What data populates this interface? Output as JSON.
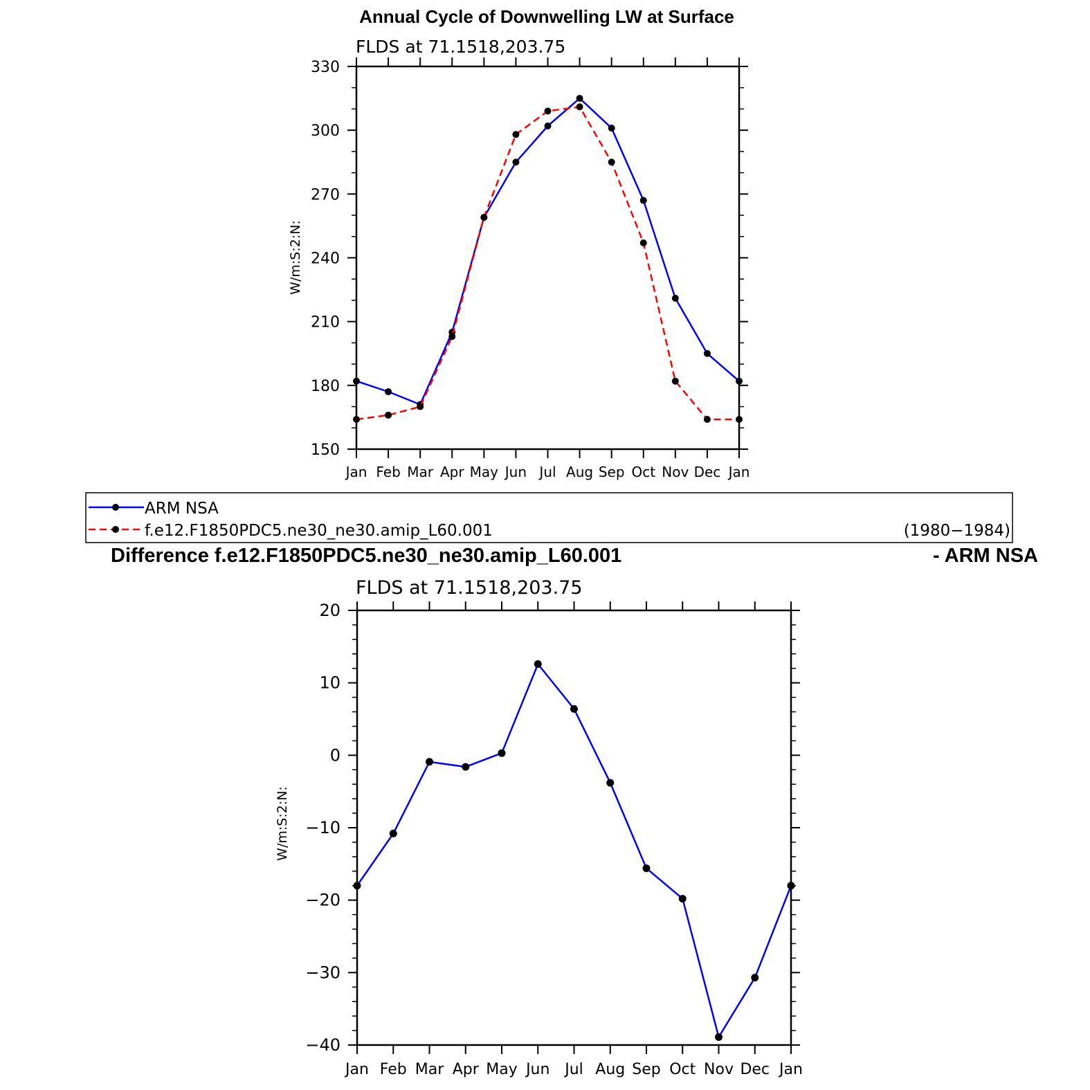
{
  "chart_data": [
    {
      "type": "line",
      "title": "Annual Cycle of Downwelling LW at Surface",
      "subtitle": "FLDS at 71.1518,203.75",
      "xlabel": "",
      "ylabel": "W/m:S:2:N:",
      "categories": [
        "Jan",
        "Feb",
        "Mar",
        "Apr",
        "May",
        "Jun",
        "Jul",
        "Aug",
        "Sep",
        "Oct",
        "Nov",
        "Dec",
        "Jan"
      ],
      "ylim": [
        150,
        330
      ],
      "yticks": [
        "150",
        "180",
        "210",
        "240",
        "270",
        "300",
        "330"
      ],
      "series": [
        {
          "name": "ARM NSA",
          "color": "#0000ff",
          "dash": "solid",
          "values": [
            182,
            177,
            171,
            205,
            259,
            285,
            302,
            315,
            301,
            267,
            221,
            195,
            182
          ]
        },
        {
          "name": "f.e12.F1850PDC5.ne30_ne30.amip_L60.001",
          "color": "#ff0000",
          "dash": "dashed",
          "values": [
            164,
            166,
            170,
            203,
            259,
            298,
            309,
            311,
            285,
            247,
            182,
            164,
            164
          ]
        }
      ],
      "legend": {
        "placement": "bottom",
        "period": "(1980−1984)"
      }
    },
    {
      "type": "line",
      "title_left": "Difference f.e12.F1850PDC5.ne30_ne30.amip_L60.001",
      "title_right": "- ARM NSA",
      "subtitle": "FLDS at 71.1518,203.75",
      "xlabel": "",
      "ylabel": "W/m:S:2:N:",
      "categories": [
        "Jan",
        "Feb",
        "Mar",
        "Apr",
        "May",
        "Jun",
        "Jul",
        "Aug",
        "Sep",
        "Oct",
        "Nov",
        "Dec",
        "Jan"
      ],
      "ylim": [
        -40,
        20
      ],
      "yticks": [
        "−40",
        "−30",
        "−20",
        "−10",
        "0",
        "10",
        "20"
      ],
      "series": [
        {
          "color": "#0000ff",
          "dash": "solid",
          "values": [
            -18,
            -10.8,
            -0.9,
            -1.6,
            0.3,
            12.6,
            6.4,
            -3.8,
            -15.6,
            -19.8,
            -38.9,
            -30.7,
            -18
          ]
        }
      ]
    }
  ]
}
